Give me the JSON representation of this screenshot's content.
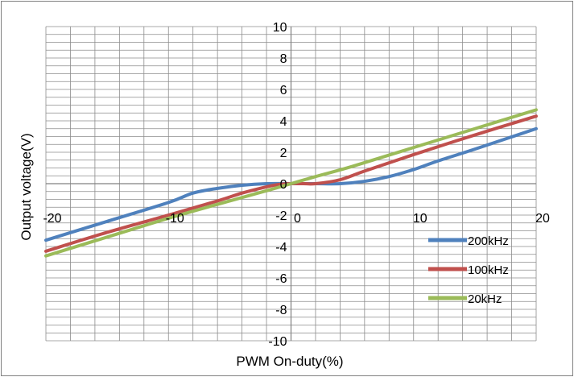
{
  "chart_data": {
    "type": "line",
    "title": "",
    "xlabel": "PWM On-duty(%)",
    "ylabel": "Output voltage(V)",
    "xlim": [
      -20,
      20
    ],
    "ylim": [
      -10,
      10
    ],
    "x_ticks": [
      -20,
      -10,
      0,
      10,
      20
    ],
    "y_ticks": [
      -10,
      -8,
      -6,
      -4,
      -2,
      0,
      2,
      4,
      6,
      8,
      10
    ],
    "x_tick_labels": [
      "-20",
      "-10",
      "0",
      "10",
      "20"
    ],
    "y_tick_labels": [
      "-10",
      "-8",
      "-6",
      "-4",
      "-2",
      "0",
      "2",
      "4",
      "6",
      "8",
      "10"
    ],
    "grid": true,
    "legend_position": "right",
    "series": [
      {
        "name": "200kHz",
        "color": "#4f81bd",
        "x": [
          -20,
          -15,
          -10,
          -8,
          -6,
          -4,
          -2,
          0,
          2,
          4,
          6,
          8,
          10,
          12,
          15,
          20
        ],
        "y": [
          -3.6,
          -2.4,
          -1.2,
          -0.6,
          -0.3,
          -0.1,
          0.0,
          0.0,
          0.0,
          0.0,
          0.15,
          0.45,
          0.9,
          1.45,
          2.2,
          3.5
        ]
      },
      {
        "name": "100kHz",
        "color": "#c0504d",
        "x": [
          -20,
          -15,
          -10,
          -6,
          -4,
          -2,
          -1,
          0,
          1,
          2,
          4,
          6,
          10,
          15,
          20
        ],
        "y": [
          -4.3,
          -3.1,
          -2.0,
          -1.1,
          -0.6,
          -0.2,
          -0.05,
          0.0,
          0.0,
          0.0,
          0.25,
          0.8,
          1.85,
          3.1,
          4.3
        ]
      },
      {
        "name": "20kHz",
        "color": "#9bbb59",
        "x": [
          -20,
          -15,
          -10,
          -5,
          -2,
          0,
          2,
          5,
          10,
          15,
          20
        ],
        "y": [
          -4.6,
          -3.4,
          -2.2,
          -1.1,
          -0.45,
          0.0,
          0.45,
          1.1,
          2.3,
          3.5,
          4.7
        ]
      }
    ]
  }
}
